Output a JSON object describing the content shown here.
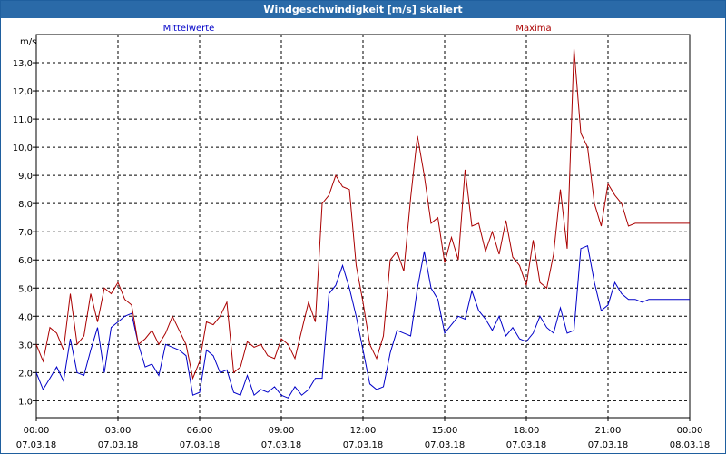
{
  "window": {
    "title": "Windgeschwindigkeit [m/s] skaliert"
  },
  "colors": {
    "mean": "#0000c8",
    "max": "#aa0000",
    "grid": "#000000",
    "titlebar": "#2a6aa8"
  },
  "chart_data": {
    "type": "line",
    "title": "Windgeschwindigkeit [m/s] skaliert",
    "ylabel": "m/s",
    "ylim": [
      0.4,
      14.0
    ],
    "yticks": [
      "1,0",
      "2,0",
      "3,0",
      "4,0",
      "5,0",
      "6,0",
      "7,0",
      "8,0",
      "9,0",
      "10,0",
      "11,0",
      "12,0",
      "13,0"
    ],
    "xticks": [
      {
        "time": "00:00",
        "date": "07.03.18"
      },
      {
        "time": "03:00",
        "date": "07.03.18"
      },
      {
        "time": "06:00",
        "date": "07.03.18"
      },
      {
        "time": "09:00",
        "date": "07.03.18"
      },
      {
        "time": "12:00",
        "date": "07.03.18"
      },
      {
        "time": "15:00",
        "date": "07.03.18"
      },
      {
        "time": "18:00",
        "date": "07.03.18"
      },
      {
        "time": "21:00",
        "date": "07.03.18"
      },
      {
        "time": "00:00",
        "date": "08.03.18"
      }
    ],
    "x_hours": [
      0,
      0.25,
      0.5,
      0.75,
      1,
      1.25,
      1.5,
      1.75,
      2,
      2.25,
      2.5,
      2.75,
      3,
      3.25,
      3.5,
      3.75,
      4,
      4.25,
      4.5,
      4.75,
      5,
      5.25,
      5.5,
      5.75,
      6,
      6.25,
      6.5,
      6.75,
      7,
      7.25,
      7.5,
      7.75,
      8,
      8.25,
      8.5,
      8.75,
      9,
      9.25,
      9.5,
      9.75,
      10,
      10.25,
      10.5,
      10.75,
      11,
      11.25,
      11.5,
      11.75,
      12,
      12.25,
      12.5,
      12.75,
      13,
      13.25,
      13.5,
      13.75,
      14,
      14.25,
      14.5,
      14.75,
      15,
      15.25,
      15.5,
      15.75,
      16,
      16.25,
      16.5,
      16.75,
      17,
      17.25,
      17.5,
      17.75,
      18,
      18.25,
      18.5,
      18.75,
      19,
      19.25,
      19.5,
      19.75,
      20,
      20.25,
      20.5,
      20.75,
      21,
      21.25,
      21.5,
      21.75,
      22,
      22.25,
      22.5,
      22.75,
      23,
      23.25,
      23.5,
      23.75,
      24
    ],
    "series": [
      {
        "name": "Mittelwerte",
        "values": [
          2.0,
          1.4,
          1.8,
          2.2,
          1.7,
          3.2,
          2.0,
          1.9,
          2.8,
          3.6,
          2.0,
          3.6,
          3.8,
          4.0,
          4.1,
          3.0,
          2.2,
          2.3,
          1.9,
          3.0,
          2.9,
          2.8,
          2.6,
          1.2,
          1.3,
          2.8,
          2.6,
          2.0,
          2.1,
          1.3,
          1.2,
          1.9,
          1.2,
          1.4,
          1.3,
          1.5,
          1.2,
          1.1,
          1.5,
          1.2,
          1.4,
          1.8,
          1.8,
          4.8,
          5.1,
          5.8,
          5.0,
          4.0,
          2.8,
          1.6,
          1.4,
          1.5,
          2.7,
          3.5,
          3.4,
          3.3,
          5.0,
          6.3,
          5.0,
          4.6,
          3.4,
          3.7,
          4.0,
          3.9,
          4.9,
          4.2,
          3.9,
          3.5,
          4.0,
          3.3,
          3.6,
          3.2,
          3.1,
          3.4,
          4.0,
          3.6,
          3.4,
          4.3,
          3.4,
          3.5,
          6.4,
          6.5,
          5.2,
          4.2,
          4.4,
          5.2,
          4.8,
          4.6,
          4.6,
          4.5,
          4.6,
          4.6,
          4.6,
          4.6,
          4.6,
          4.6,
          4.6
        ],
        "color": "#0000c8"
      },
      {
        "name": "Maxima",
        "values": [
          3.0,
          2.4,
          3.6,
          3.4,
          2.8,
          4.8,
          3.0,
          3.3,
          4.8,
          3.8,
          5.0,
          4.8,
          5.2,
          4.6,
          4.4,
          3.0,
          3.2,
          3.5,
          3.0,
          3.4,
          4.0,
          3.5,
          3.0,
          1.8,
          2.4,
          3.8,
          3.7,
          4.0,
          4.5,
          2.0,
          2.2,
          3.1,
          2.9,
          3.0,
          2.6,
          2.5,
          3.2,
          3.0,
          2.5,
          3.5,
          4.5,
          3.8,
          8.0,
          8.3,
          9.0,
          8.6,
          8.5,
          5.8,
          4.5,
          3.0,
          2.5,
          3.3,
          6.0,
          6.3,
          5.6,
          8.2,
          10.4,
          9.0,
          7.3,
          7.5,
          5.9,
          6.8,
          6.0,
          9.2,
          7.2,
          7.3,
          6.3,
          7.0,
          6.2,
          7.4,
          6.1,
          5.8,
          5.1,
          6.7,
          5.2,
          5.0,
          6.2,
          8.5,
          6.4,
          13.5,
          10.5,
          10.0,
          8.0,
          7.2,
          8.7,
          8.3,
          8.0,
          7.2,
          7.3,
          7.3,
          7.3,
          7.3,
          7.3,
          7.3,
          7.3,
          7.3,
          7.3
        ],
        "color": "#aa0000"
      }
    ],
    "legend": {
      "placement": "top",
      "items": [
        "Mittelwerte",
        "Maxima"
      ]
    },
    "grid": true
  }
}
